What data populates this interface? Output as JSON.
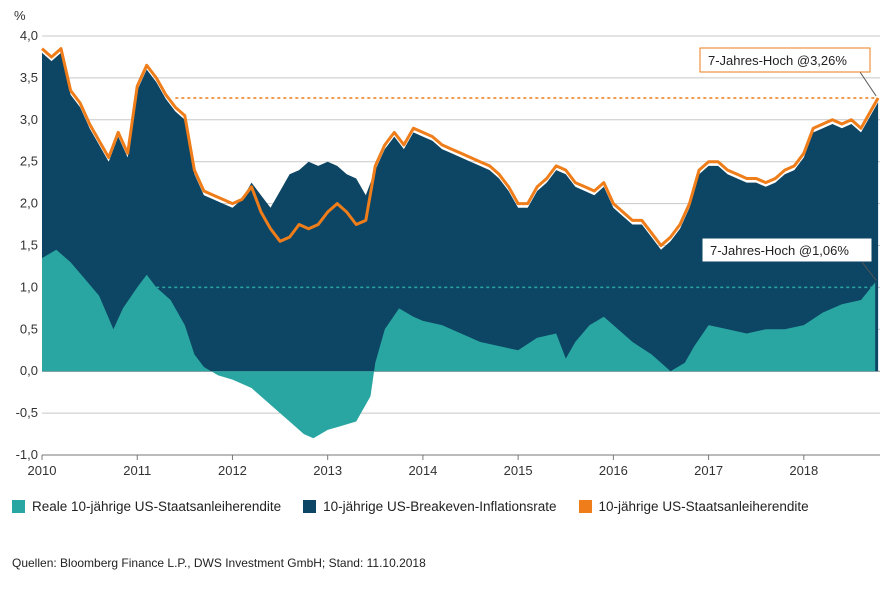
{
  "chart_data": {
    "type": "area",
    "ylabel": "%",
    "ylim": [
      -1.0,
      4.0
    ],
    "xlim": [
      2010.0,
      2018.8
    ],
    "yticks": [
      "4,0",
      "3,5",
      "3,0",
      "2,5",
      "2,0",
      "1,5",
      "1,0",
      "0,5",
      "0,0",
      "-0,5",
      "-1,0"
    ],
    "xticks": [
      "2010",
      "2011",
      "2012",
      "2013",
      "2014",
      "2015",
      "2016",
      "2017",
      "2018"
    ],
    "grid": true,
    "legend_position": "bottom",
    "series": [
      {
        "name": "Reale 10-jährige US-Staatsanleiherendite",
        "color": "#2aa6a2",
        "x": [
          2010.0,
          2010.15,
          2010.3,
          2010.45,
          2010.6,
          2010.75,
          2010.85,
          2011.0,
          2011.1,
          2011.2,
          2011.35,
          2011.5,
          2011.6,
          2011.7,
          2011.85,
          2012.0,
          2012.2,
          2012.4,
          2012.6,
          2012.75,
          2012.85,
          2013.0,
          2013.15,
          2013.3,
          2013.45,
          2013.5,
          2013.6,
          2013.75,
          2013.9,
          2014.0,
          2014.2,
          2014.4,
          2014.6,
          2014.8,
          2015.0,
          2015.2,
          2015.4,
          2015.5,
          2015.6,
          2015.75,
          2015.9,
          2016.0,
          2016.2,
          2016.4,
          2016.5,
          2016.6,
          2016.75,
          2016.85,
          2017.0,
          2017.2,
          2017.4,
          2017.6,
          2017.8,
          2018.0,
          2018.2,
          2018.4,
          2018.6,
          2018.75
        ],
        "values": [
          1.35,
          1.45,
          1.3,
          1.1,
          0.9,
          0.5,
          0.75,
          1.0,
          1.15,
          1.0,
          0.85,
          0.55,
          0.2,
          0.05,
          -0.05,
          -0.1,
          -0.2,
          -0.4,
          -0.6,
          -0.75,
          -0.8,
          -0.7,
          -0.65,
          -0.6,
          -0.3,
          0.1,
          0.5,
          0.75,
          0.65,
          0.6,
          0.55,
          0.45,
          0.35,
          0.3,
          0.25,
          0.4,
          0.45,
          0.15,
          0.35,
          0.55,
          0.65,
          0.55,
          0.35,
          0.2,
          0.1,
          0.0,
          0.1,
          0.3,
          0.55,
          0.5,
          0.45,
          0.5,
          0.5,
          0.55,
          0.7,
          0.8,
          0.85,
          1.06
        ]
      },
      {
        "name": "10-jährige US-Breakeven-Inflationsrate",
        "color": "#0d4564",
        "x": [
          2010.0,
          2010.1,
          2010.2,
          2010.3,
          2010.4,
          2010.5,
          2010.6,
          2010.7,
          2010.8,
          2010.9,
          2011.0,
          2011.1,
          2011.2,
          2011.3,
          2011.4,
          2011.5,
          2011.6,
          2011.7,
          2011.8,
          2011.9,
          2012.0,
          2012.1,
          2012.2,
          2012.3,
          2012.4,
          2012.5,
          2012.6,
          2012.7,
          2012.8,
          2012.9,
          2013.0,
          2013.1,
          2013.2,
          2013.3,
          2013.4,
          2013.5,
          2013.6,
          2013.7,
          2013.8,
          2013.9,
          2014.0,
          2014.1,
          2014.2,
          2014.3,
          2014.4,
          2014.5,
          2014.6,
          2014.7,
          2014.8,
          2014.9,
          2015.0,
          2015.1,
          2015.2,
          2015.3,
          2015.4,
          2015.5,
          2015.6,
          2015.7,
          2015.8,
          2015.9,
          2016.0,
          2016.1,
          2016.2,
          2016.3,
          2016.4,
          2016.5,
          2016.6,
          2016.7,
          2016.8,
          2016.9,
          2017.0,
          2017.1,
          2017.2,
          2017.3,
          2017.4,
          2017.5,
          2017.6,
          2017.7,
          2017.8,
          2017.9,
          2018.0,
          2018.1,
          2018.2,
          2018.3,
          2018.4,
          2018.5,
          2018.6,
          2018.7,
          2018.78
        ],
        "values": [
          3.8,
          3.7,
          3.75,
          3.35,
          3.15,
          2.85,
          2.65,
          2.5,
          2.8,
          2.5,
          3.35,
          3.6,
          3.45,
          3.25,
          3.05,
          2.95,
          2.35,
          2.05,
          2.05,
          2.0,
          2.0,
          2.1,
          2.3,
          2.15,
          2.0,
          2.2,
          2.4,
          2.45,
          2.55,
          2.5,
          2.55,
          2.5,
          2.4,
          2.35,
          2.15,
          2.35,
          2.65,
          2.8,
          2.7,
          2.85,
          2.85,
          2.75,
          2.65,
          2.6,
          2.55,
          2.5,
          2.45,
          2.4,
          2.3,
          2.15,
          1.95,
          1.95,
          2.15,
          2.25,
          2.4,
          2.35,
          2.2,
          2.15,
          2.1,
          2.2,
          1.95,
          1.85,
          1.75,
          1.75,
          1.6,
          1.45,
          1.6,
          1.7,
          1.9,
          2.3,
          2.45,
          2.45,
          2.4,
          2.3,
          2.25,
          2.25,
          2.2,
          2.25,
          2.35,
          2.4,
          2.55,
          2.85,
          2.9,
          2.95,
          2.9,
          2.95,
          2.85,
          3.05,
          3.2
        ]
      },
      {
        "name": "10-jährige US-Staatsanleiherendite",
        "color": "#ee7d1a",
        "x": [
          2010.0,
          2010.1,
          2010.2,
          2010.3,
          2010.4,
          2010.5,
          2010.6,
          2010.7,
          2010.8,
          2010.9,
          2011.0,
          2011.1,
          2011.2,
          2011.3,
          2011.4,
          2011.5,
          2011.6,
          2011.7,
          2011.8,
          2011.9,
          2012.0,
          2012.1,
          2012.2,
          2012.3,
          2012.4,
          2012.5,
          2012.6,
          2012.7,
          2012.8,
          2012.9,
          2013.0,
          2013.1,
          2013.2,
          2013.3,
          2013.4,
          2013.5,
          2013.6,
          2013.7,
          2013.8,
          2013.9,
          2014.0,
          2014.1,
          2014.2,
          2014.3,
          2014.4,
          2014.5,
          2014.6,
          2014.7,
          2014.8,
          2014.9,
          2015.0,
          2015.1,
          2015.2,
          2015.3,
          2015.4,
          2015.5,
          2015.6,
          2015.7,
          2015.8,
          2015.9,
          2016.0,
          2016.1,
          2016.2,
          2016.3,
          2016.4,
          2016.5,
          2016.6,
          2016.7,
          2016.8,
          2016.9,
          2017.0,
          2017.1,
          2017.2,
          2017.3,
          2017.4,
          2017.5,
          2017.6,
          2017.7,
          2017.8,
          2017.9,
          2018.0,
          2018.1,
          2018.2,
          2018.3,
          2018.4,
          2018.5,
          2018.6,
          2018.7,
          2018.78
        ],
        "values": [
          3.85,
          3.75,
          3.85,
          3.35,
          3.2,
          2.95,
          2.75,
          2.55,
          2.85,
          2.6,
          3.4,
          3.65,
          3.5,
          3.3,
          3.15,
          3.05,
          2.4,
          2.15,
          2.1,
          2.05,
          2.0,
          2.05,
          2.2,
          1.9,
          1.7,
          1.55,
          1.6,
          1.75,
          1.7,
          1.75,
          1.9,
          2.0,
          1.9,
          1.75,
          1.8,
          2.45,
          2.7,
          2.85,
          2.7,
          2.9,
          2.85,
          2.8,
          2.7,
          2.65,
          2.6,
          2.55,
          2.5,
          2.45,
          2.35,
          2.2,
          2.0,
          2.0,
          2.2,
          2.3,
          2.45,
          2.4,
          2.25,
          2.2,
          2.15,
          2.25,
          2.0,
          1.9,
          1.8,
          1.8,
          1.65,
          1.5,
          1.6,
          1.75,
          2.0,
          2.4,
          2.5,
          2.5,
          2.4,
          2.35,
          2.3,
          2.3,
          2.25,
          2.3,
          2.4,
          2.45,
          2.6,
          2.9,
          2.95,
          3.0,
          2.95,
          3.0,
          2.9,
          3.1,
          3.26
        ]
      }
    ],
    "reference_lines": [
      {
        "value": 3.26,
        "from_x": 2011.4,
        "color": "#ee7d1a",
        "style": "dashed"
      },
      {
        "value": 1.0,
        "from_x": 2011.2,
        "color": "#2aa6a2",
        "style": "dashed"
      }
    ],
    "annotations": [
      {
        "text": "7-Jahres-Hoch @3,26%",
        "target_x": 2018.78,
        "target_y": 3.26
      },
      {
        "text": "7-Jahres-Hoch @1,06%",
        "target_x": 2018.78,
        "target_y": 1.06
      }
    ]
  },
  "legend": {
    "items": [
      {
        "label": "Reale 10-jährige US-Staatsanleiherendite",
        "color": "#2aa6a2"
      },
      {
        "label": "10-jährige US-Breakeven-Inflationsrate",
        "color": "#0d4564"
      },
      {
        "label": "10-jährige US-Staatsanleiherendite",
        "color": "#ee7d1a"
      }
    ]
  },
  "source": "Quellen: Bloomberg Finance L.P., DWS Investment GmbH; Stand: 11.10.2018"
}
